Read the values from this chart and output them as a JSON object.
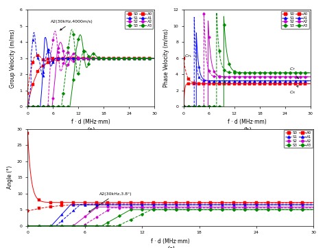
{
  "fig_width": 4.74,
  "fig_height": 3.61,
  "dpi": 100,
  "colors": {
    "S0_A0": "#ff0000",
    "S1_A1": "#0000ff",
    "S2_A2": "#cc00cc",
    "S3_A3": "#008800"
  },
  "xlabel": "f · d (MHz·mm)",
  "ylabel_a": "Group Velocity (m/ms)",
  "ylabel_b": "Phase Velocity (m/ms)",
  "ylabel_c": "Angle (°)",
  "annotation_a": "A2(30kHz,4000m/s)",
  "annotation_c": "A2(30kHz,3.8°)",
  "CPL": 6.0,
  "CT": 3.2,
  "CR": 2.85,
  "ylim_a": [
    0,
    6
  ],
  "ylim_b": [
    0,
    12
  ],
  "ylim_c": [
    0,
    30
  ],
  "yticks_a": [
    0,
    1,
    2,
    3,
    4,
    5,
    6
  ],
  "yticks_b": [
    0,
    2,
    4,
    6,
    8,
    10,
    12
  ],
  "yticks_c": [
    0,
    5,
    10,
    15,
    20,
    25,
    30
  ],
  "xticks": [
    0,
    6,
    12,
    18,
    24,
    30
  ]
}
